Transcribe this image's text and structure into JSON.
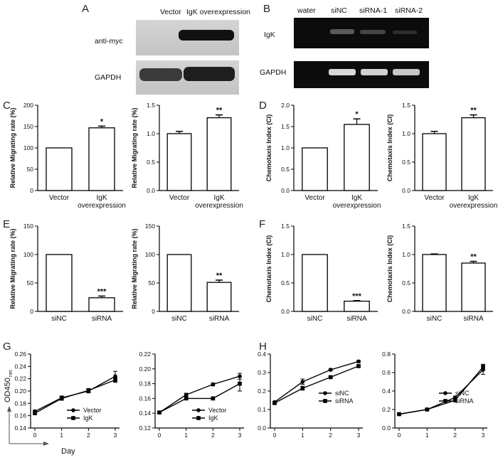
{
  "panel_labels": {
    "A": "A",
    "B": "B",
    "C": "C",
    "D": "D",
    "E": "E",
    "F": "F",
    "G": "G",
    "H": "H"
  },
  "blot_A": {
    "columns": [
      "Vector",
      "IgK overexpression"
    ],
    "rows": [
      "anti-myc",
      "GAPDH"
    ]
  },
  "gel_B": {
    "columns": [
      "water",
      "siNC",
      "siRNA-1",
      "siRNA-2"
    ],
    "rows": [
      "IgK",
      "GAPDH"
    ]
  },
  "g_axis": {
    "ylabel_main": "OD450",
    "ylabel_sub": "nm",
    "xlabel": "Day"
  },
  "chart_data": [
    {
      "id": "C1",
      "type": "bar",
      "categories": [
        "Vector",
        "IgK overexpression"
      ],
      "values": [
        100,
        147
      ],
      "errors": [
        0,
        4
      ],
      "significance": [
        "",
        "*"
      ],
      "ylabel": "Relative Migrating rate (%)",
      "ylim": [
        0,
        200
      ],
      "yticks": [
        "0",
        "50",
        "100",
        "150",
        "200"
      ]
    },
    {
      "id": "C2",
      "type": "bar",
      "categories": [
        "Vector",
        "IgK overexpression"
      ],
      "values": [
        1.0,
        1.28
      ],
      "errors": [
        0.04,
        0.05
      ],
      "significance": [
        "",
        "**"
      ],
      "ylabel": "Relative Migrating rate (%)",
      "ylim": [
        0,
        1.5
      ],
      "yticks": [
        "0.0",
        "0.5",
        "1.0",
        "1.5"
      ]
    },
    {
      "id": "D1",
      "type": "bar",
      "categories": [
        "Vector",
        "IgK overexpression"
      ],
      "values": [
        1.0,
        1.55
      ],
      "errors": [
        0,
        0.13
      ],
      "significance": [
        "",
        "*"
      ],
      "ylabel": "Chemotaxis Index (CI)",
      "ylim": [
        0,
        2.0
      ],
      "yticks": [
        "0.0",
        "0.5",
        "1.0",
        "1.5",
        "2.0"
      ]
    },
    {
      "id": "D2",
      "type": "bar",
      "categories": [
        "Vector",
        "IgK overexpression"
      ],
      "values": [
        1.0,
        1.28
      ],
      "errors": [
        0.04,
        0.05
      ],
      "significance": [
        "",
        "**"
      ],
      "ylabel": "Chemotaxis Index (CI)",
      "ylim": [
        0,
        1.5
      ],
      "yticks": [
        "0.0",
        "0.5",
        "1.0",
        "1.5"
      ]
    },
    {
      "id": "E1",
      "type": "bar",
      "categories": [
        "siNC",
        "siRNA"
      ],
      "values": [
        100,
        24
      ],
      "errors": [
        0,
        3
      ],
      "significance": [
        "",
        "***"
      ],
      "ylabel": "Relative Migrating rate (%)",
      "ylim": [
        0,
        150
      ],
      "yticks": [
        "0",
        "50",
        "100",
        "150"
      ]
    },
    {
      "id": "E2",
      "type": "bar",
      "categories": [
        "siNC",
        "siRNA"
      ],
      "values": [
        100,
        51
      ],
      "errors": [
        0,
        4
      ],
      "significance": [
        "",
        "**"
      ],
      "ylabel": "Relative Migrating rate (%)",
      "ylim": [
        0,
        150
      ],
      "yticks": [
        "0",
        "50",
        "100",
        "150"
      ]
    },
    {
      "id": "F1",
      "type": "bar",
      "categories": [
        "siNC",
        "siRNA"
      ],
      "values": [
        1.0,
        0.18
      ],
      "errors": [
        0,
        0.01
      ],
      "significance": [
        "",
        "***"
      ],
      "ylabel": "Chemotaxis Index (CI)",
      "ylim": [
        0,
        1.5
      ],
      "yticks": [
        "0.0",
        "0.5",
        "1.0",
        "1.5"
      ]
    },
    {
      "id": "F2",
      "type": "bar",
      "categories": [
        "siNC",
        "siRNA"
      ],
      "values": [
        1.0,
        0.85
      ],
      "errors": [
        0.01,
        0.03
      ],
      "significance": [
        "",
        "**"
      ],
      "ylabel": "Chemotaxis Index (CI)",
      "ylim": [
        0,
        1.5
      ],
      "yticks": [
        "0.0",
        "0.5",
        "1.0",
        "1.5"
      ]
    },
    {
      "id": "G1",
      "type": "line",
      "x": [
        0,
        1,
        2,
        3
      ],
      "xticks": [
        "0",
        "1",
        "2",
        "3"
      ],
      "ylim": [
        0.14,
        0.26
      ],
      "yticks": [
        "0.14",
        "0.16",
        "0.18",
        "0.20",
        "0.22",
        "0.24",
        "0.26"
      ],
      "series": [
        {
          "name": "Vector",
          "marker": "circle",
          "values": [
            0.167,
            0.189,
            0.2,
            0.224
          ],
          "errors": [
            0.002,
            0.003,
            0.003,
            0.008
          ]
        },
        {
          "name": "IgK",
          "marker": "square",
          "values": [
            0.164,
            0.188,
            0.201,
            0.218
          ],
          "errors": [
            0.002,
            0.003,
            0.003,
            0.004
          ]
        }
      ]
    },
    {
      "id": "G2",
      "type": "line",
      "x": [
        0,
        1,
        2,
        3
      ],
      "xticks": [
        "0",
        "1",
        "2",
        "3"
      ],
      "ylim": [
        0.12,
        0.22
      ],
      "yticks": [
        "0.12",
        "0.14",
        "0.16",
        "0.18",
        "0.20",
        "0.22"
      ],
      "series": [
        {
          "name": "Vector",
          "marker": "circle",
          "values": [
            0.141,
            0.165,
            0.179,
            0.19
          ],
          "errors": [
            0.001,
            0.002,
            0.002,
            0.004
          ]
        },
        {
          "name": "IgK",
          "marker": "square",
          "values": [
            0.141,
            0.16,
            0.16,
            0.18
          ],
          "errors": [
            0.001,
            0.002,
            0.002,
            0.01
          ]
        }
      ]
    },
    {
      "id": "H1",
      "type": "line",
      "x": [
        0,
        1,
        2,
        3
      ],
      "xticks": [
        "0",
        "1",
        "2",
        "3"
      ],
      "ylim": [
        0,
        0.4
      ],
      "yticks": [
        "0.0",
        "0.1",
        "0.2",
        "0.3",
        "0.4"
      ],
      "series": [
        {
          "name": "siNC",
          "marker": "circle",
          "values": [
            0.14,
            0.25,
            0.315,
            0.36
          ],
          "errors": [
            0.005,
            0.015,
            0.005,
            0.006
          ]
        },
        {
          "name": "siRNA",
          "marker": "square",
          "values": [
            0.135,
            0.215,
            0.275,
            0.335
          ],
          "errors": [
            0.005,
            0.01,
            0.005,
            0.006
          ]
        }
      ]
    },
    {
      "id": "H2",
      "type": "line",
      "x": [
        0,
        1,
        2,
        3
      ],
      "xticks": [
        "0",
        "1",
        "2",
        "3"
      ],
      "ylim": [
        0,
        0.8
      ],
      "yticks": [
        "0.0",
        "0.2",
        "0.4",
        "0.6",
        "0.8"
      ],
      "series": [
        {
          "name": "siNC",
          "marker": "circle",
          "values": [
            0.15,
            0.2,
            0.33,
            0.63
          ],
          "errors": [
            0.005,
            0.005,
            0.015,
            0.05
          ]
        },
        {
          "name": "siRNA",
          "marker": "square",
          "values": [
            0.15,
            0.2,
            0.3,
            0.66
          ],
          "errors": [
            0.005,
            0.005,
            0.01,
            0.03
          ]
        }
      ]
    }
  ]
}
